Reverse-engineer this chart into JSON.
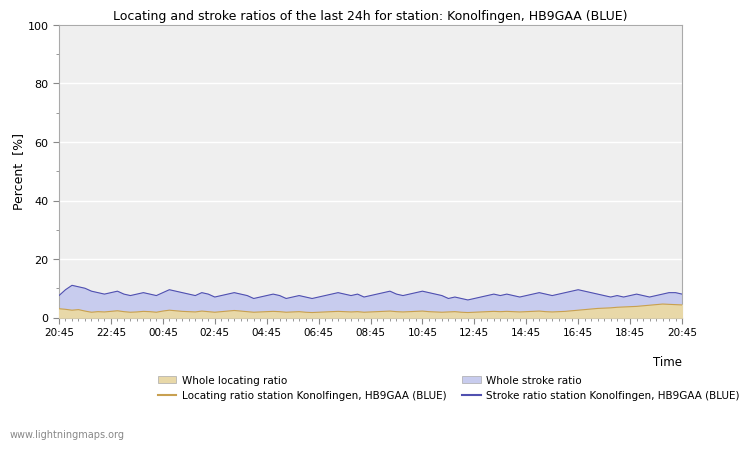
{
  "title": "Locating and stroke ratios of the last 24h for station: Konolfingen, HB9GAA (BLUE)",
  "ylabel": "Percent  [%]",
  "xlabel": "Time",
  "xlim": [
    0,
    96
  ],
  "ylim": [
    0,
    100
  ],
  "yticks": [
    0,
    20,
    40,
    60,
    80,
    100
  ],
  "ytick_minor": [
    10,
    30,
    50,
    70,
    90
  ],
  "x_tick_labels": [
    "20:45",
    "22:45",
    "00:45",
    "02:45",
    "04:45",
    "06:45",
    "08:45",
    "10:45",
    "12:45",
    "14:45",
    "16:45",
    "18:45",
    "20:45"
  ],
  "x_tick_positions": [
    0,
    8,
    16,
    24,
    32,
    40,
    48,
    56,
    64,
    72,
    80,
    88,
    96
  ],
  "background_color": "#ffffff",
  "plot_bg_color": "#efefef",
  "grid_color": "#ffffff",
  "watermark": "www.lightningmaps.org",
  "locating_fill_color": "#e8d8a8",
  "stroke_fill_color": "#c8ccee",
  "locating_line_color": "#c8a050",
  "stroke_line_color": "#5050b0",
  "legend_locating_patch": "Whole locating ratio",
  "legend_stroke_patch": "Whole stroke ratio",
  "legend_locating_line": "Locating ratio station Konolfingen, HB9GAA (BLUE)",
  "legend_stroke_line": "Stroke ratio station Konolfingen, HB9GAA (BLUE)",
  "locating_values": [
    3.0,
    2.8,
    2.5,
    2.7,
    2.2,
    1.8,
    2.0,
    1.9,
    2.1,
    2.3,
    2.0,
    1.8,
    1.9,
    2.1,
    2.0,
    1.8,
    2.2,
    2.5,
    2.3,
    2.1,
    2.0,
    1.9,
    2.2,
    2.0,
    1.8,
    2.0,
    2.2,
    2.4,
    2.2,
    2.0,
    1.8,
    1.9,
    2.0,
    2.1,
    2.0,
    1.8,
    1.9,
    2.0,
    1.8,
    1.7,
    1.8,
    1.9,
    2.0,
    2.1,
    2.0,
    1.9,
    2.0,
    1.8,
    1.9,
    2.0,
    2.1,
    2.2,
    2.0,
    1.9,
    2.0,
    2.1,
    2.2,
    2.0,
    1.9,
    1.8,
    1.9,
    2.0,
    1.8,
    1.7,
    1.8,
    1.9,
    2.0,
    2.1,
    2.0,
    2.1,
    2.0,
    1.9,
    2.0,
    2.1,
    2.2,
    2.0,
    1.9,
    2.0,
    2.1,
    2.3,
    2.5,
    2.7,
    2.9,
    3.1,
    3.2,
    3.3,
    3.5,
    3.6,
    3.7,
    3.8,
    4.0,
    4.2,
    4.4,
    4.6,
    4.5,
    4.4,
    4.3
  ],
  "stroke_values": [
    7.5,
    9.5,
    11.0,
    10.5,
    10.0,
    9.0,
    8.5,
    8.0,
    8.5,
    9.0,
    8.0,
    7.5,
    8.0,
    8.5,
    8.0,
    7.5,
    8.5,
    9.5,
    9.0,
    8.5,
    8.0,
    7.5,
    8.5,
    8.0,
    7.0,
    7.5,
    8.0,
    8.5,
    8.0,
    7.5,
    6.5,
    7.0,
    7.5,
    8.0,
    7.5,
    6.5,
    7.0,
    7.5,
    7.0,
    6.5,
    7.0,
    7.5,
    8.0,
    8.5,
    8.0,
    7.5,
    8.0,
    7.0,
    7.5,
    8.0,
    8.5,
    9.0,
    8.0,
    7.5,
    8.0,
    8.5,
    9.0,
    8.5,
    8.0,
    7.5,
    6.5,
    7.0,
    6.5,
    6.0,
    6.5,
    7.0,
    7.5,
    8.0,
    7.5,
    8.0,
    7.5,
    7.0,
    7.5,
    8.0,
    8.5,
    8.0,
    7.5,
    8.0,
    8.5,
    9.0,
    9.5,
    9.0,
    8.5,
    8.0,
    7.5,
    7.0,
    7.5,
    7.0,
    7.5,
    8.0,
    7.5,
    7.0,
    7.5,
    8.0,
    8.5,
    8.5,
    8.0
  ]
}
